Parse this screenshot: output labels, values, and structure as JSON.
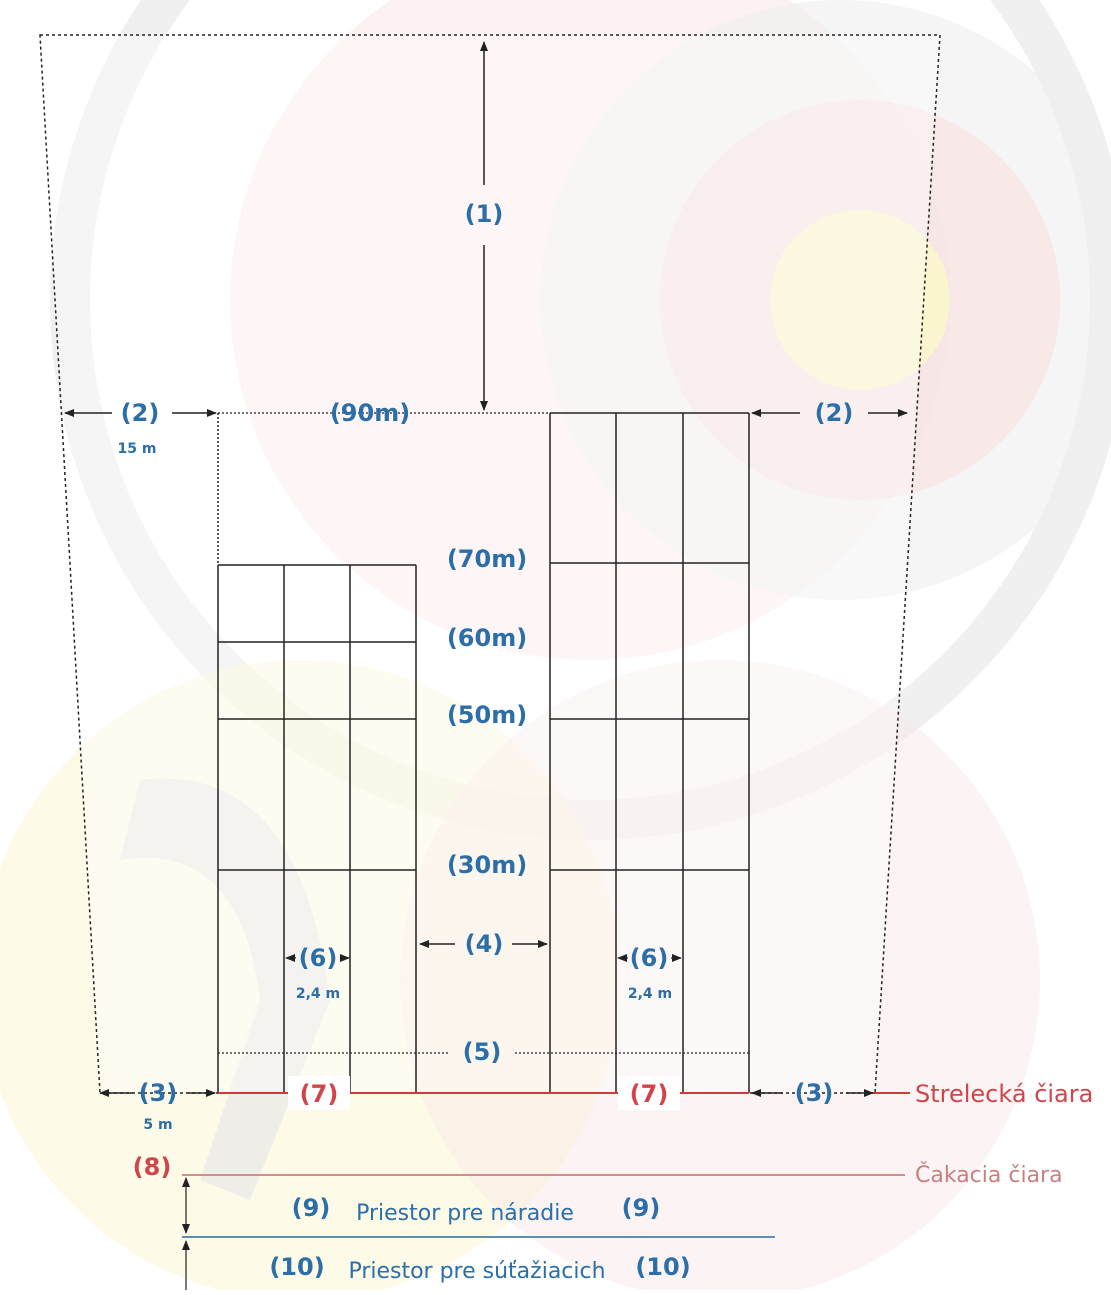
{
  "colors": {
    "blue_label": "#2b6ea8",
    "red_label": "#d1454a",
    "grid_line": "#222222",
    "shooting_line": "#d23a3a",
    "waiting_line": "#d78b8b",
    "divider_line": "#5d8fb0",
    "watermark_red": "#f9dada",
    "watermark_gray": "#e7e7e7",
    "watermark_yellow": "#fbf6c8"
  },
  "labels": {
    "safety_zone_top": "(1)",
    "side_margin_left": "(2)",
    "side_margin_left_value": "15 m",
    "side_margin_right": "(2)",
    "distance_90": "(90m)",
    "distance_70": "(70m)",
    "distance_60": "(60m)",
    "distance_50": "(50m)",
    "distance_30": "(30m)",
    "lane_gap": "(4)",
    "lane_width_left": "(6)",
    "lane_width_left_value": "2,4 m",
    "lane_width_right": "(6)",
    "lane_width_right_value": "2,4 m",
    "line_5": "(5)",
    "shooting_margin_left": "(3)",
    "shooting_margin_left_value": "5 m",
    "shooting_margin_right": "(3)",
    "shooting_line_left": "(7)",
    "shooting_line_right": "(7)",
    "shooting_line_name": "Strelecká čiara",
    "waiting_line_number": "(8)",
    "waiting_line_name": "Čakacia čiara",
    "equipment_area_left": "(9)",
    "equipment_area_name": "Priestor pre náradie",
    "equipment_area_right": "(9)",
    "competitor_area_left": "(10)",
    "competitor_area_name": "Priestor pre súťažiacich",
    "competitor_area_right": "(10)"
  }
}
